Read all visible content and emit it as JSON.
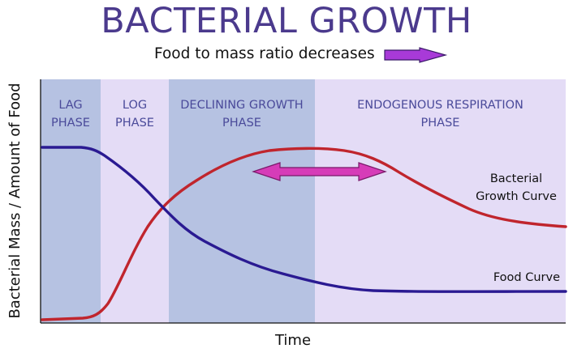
{
  "title": "BACTERIAL GROWTH",
  "subtitle": "Food to mass ratio decreases",
  "xlabel": "Time",
  "ylabel": "Bacterial Mass / Amount of Food",
  "colors": {
    "title": "#4b3a8d",
    "phase_text": "#4a4a9a",
    "band_dark": "#b6c2e2",
    "band_light": "#e4dcf6",
    "bacterial_curve": "#c0252d",
    "food_curve": "#2a1a92",
    "arrow": "#d63cb8"
  },
  "phases": [
    {
      "lines": [
        "LAG",
        "PHASE"
      ],
      "shade": "dark"
    },
    {
      "lines": [
        "LOG",
        "PHASE"
      ],
      "shade": "light"
    },
    {
      "lines": [
        "DECLINING GROWTH",
        "PHASE"
      ],
      "shade": "dark"
    },
    {
      "lines": [
        "ENDOGENOUS RESPIRATION",
        "PHASE"
      ],
      "shade": "light"
    }
  ],
  "curve_labels": {
    "bacterial": [
      "Bacterial",
      "Growth Curve"
    ],
    "food": "Food Curve"
  },
  "icons": {
    "subtitle_arrow": "right-arrow-icon",
    "mid_arrow": "double-headed-arrow-icon"
  }
}
